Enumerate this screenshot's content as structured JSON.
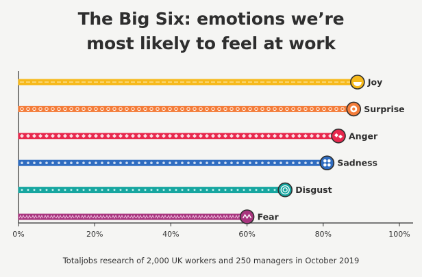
{
  "chart_data": {
    "type": "bar",
    "orientation": "horizontal",
    "title_lines": [
      "The Big Six: emotions we’re",
      "most likely to feel at work"
    ],
    "categories": [
      "Joy",
      "Surprise",
      "Anger",
      "Sadness",
      "Disgust",
      "Fear"
    ],
    "values": [
      89,
      88,
      84,
      81,
      70,
      60
    ],
    "x_unit": "%",
    "xlim": [
      0,
      100
    ],
    "x_ticks": [
      "0%",
      "20%",
      "40%",
      "60%",
      "80%",
      "100%"
    ],
    "x_tick_values": [
      0,
      20,
      40,
      60,
      80,
      100
    ],
    "grid": false,
    "legend": "none",
    "colors": [
      "#f6b91b",
      "#f47d3a",
      "#e8284d",
      "#2f6cc0",
      "#17a6a0",
      "#a8357e"
    ],
    "source": "Totaljobs research of 2,000 UK workers and 250 managers in October 2019"
  }
}
